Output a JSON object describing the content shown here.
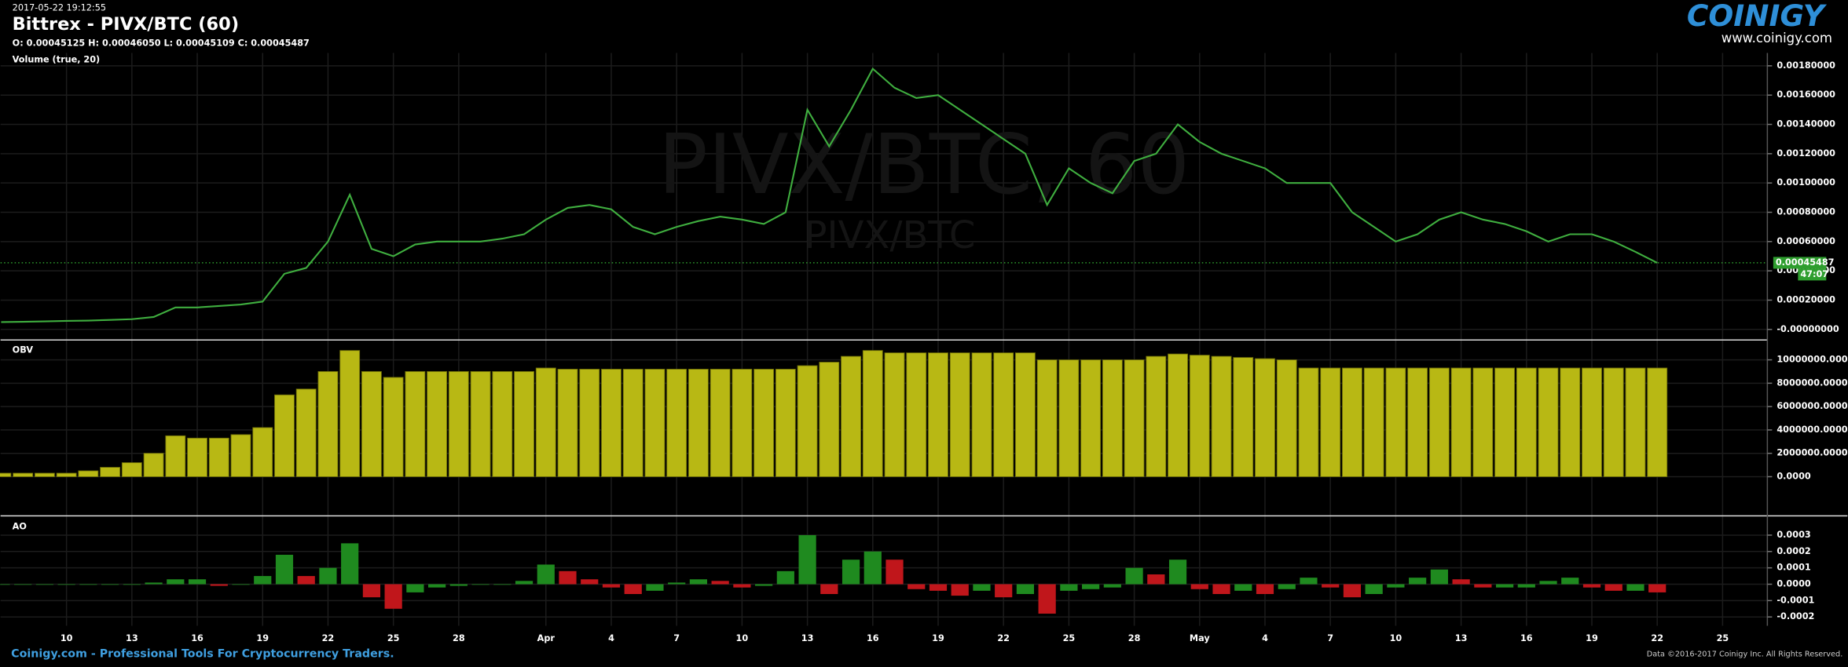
{
  "header": {
    "timestamp": "2017-05-22 19:12:55",
    "title": "Bittrex - PIVX/BTC (60)",
    "ohlc": "O: 0.00045125 H: 0.00046050 L: 0.00045109 C: 0.00045487",
    "volume_label": "Volume (true, 20)"
  },
  "logo": {
    "name": "COINIGY",
    "url": "www.coinigy.com"
  },
  "watermark": {
    "main": "PIVX/BTC, 60",
    "sub": "PIVX/BTC"
  },
  "footer": {
    "left": "Coinigy.com - Professional Tools For Cryptocurrency Traders.",
    "right": "Data ©2016-2017 Coinigy Inc. All Rights Reserved."
  },
  "chart_data": [
    {
      "type": "line",
      "color": "#3fae3f",
      "last_price": 0.00045487,
      "countdown": "47:07",
      "last_color": "#2e9e2e",
      "ylim": [
        -6.4e-05,
        0.001888
      ],
      "yticks": [
        {
          "value": 0.0018,
          "label": "0.00180000"
        },
        {
          "value": 0.0016,
          "label": "0.00160000"
        },
        {
          "value": 0.0014,
          "label": "0.00140000"
        },
        {
          "value": 0.0012,
          "label": "0.00120000"
        },
        {
          "value": 0.001,
          "label": "0.00100000"
        },
        {
          "value": 0.0008,
          "label": "0.00080000"
        },
        {
          "value": 0.0006,
          "label": "0.00060000"
        },
        {
          "value": 0.0004,
          "label": "0.00040000"
        },
        {
          "value": 0.0002,
          "label": "0.00020000"
        },
        {
          "value": 0,
          "label": "-0.00000000"
        }
      ],
      "values": [
        5e-05,
        5.2e-05,
        5.5e-05,
        5.8e-05,
        6e-05,
        6.5e-05,
        7e-05,
        8.5e-05,
        0.00015,
        0.00015,
        0.00016,
        0.00017,
        0.00019,
        0.00038,
        0.00042,
        0.0006,
        0.00092,
        0.00055,
        0.0005,
        0.00058,
        0.0006,
        0.0006,
        0.0006,
        0.00062,
        0.00065,
        0.00075,
        0.00083,
        0.00085,
        0.00082,
        0.0007,
        0.00065,
        0.0007,
        0.00074,
        0.00077,
        0.00075,
        0.00072,
        0.0008,
        0.0015,
        0.00125,
        0.0015,
        0.00178,
        0.00165,
        0.00158,
        0.0016,
        0.0015,
        0.0014,
        0.0013,
        0.0012,
        0.00085,
        0.0011,
        0.001,
        0.00093,
        0.00115,
        0.0012,
        0.0014,
        0.00128,
        0.0012,
        0.00115,
        0.0011,
        0.001,
        0.001,
        0.001,
        0.0008,
        0.0007,
        0.0006,
        0.00065,
        0.00075,
        0.0008,
        0.00075,
        0.00072,
        0.00067,
        0.0006,
        0.00065,
        0.00065,
        0.0006,
        0.00053,
        0.000455,
        null,
        null,
        null
      ]
    },
    {
      "type": "bar",
      "title": "OBV",
      "color": "#b8b814",
      "ylim": [
        -3200000,
        11500000
      ],
      "yticks": [
        {
          "value": 10000000,
          "label": "10000000.0000"
        },
        {
          "value": 8000000,
          "label": "8000000.0000"
        },
        {
          "value": 6000000,
          "label": "6000000.0000"
        },
        {
          "value": 4000000,
          "label": "4000000.0000"
        },
        {
          "value": 2000000,
          "label": "2000000.0000"
        },
        {
          "value": 0,
          "label": "0.0000"
        }
      ],
      "values": [
        300000,
        300000,
        300000,
        300000,
        500000,
        800000,
        1200000,
        2000000,
        3500000,
        3300000,
        3300000,
        3600000,
        4200000,
        7000000,
        7500000,
        9000000,
        10800000,
        9000000,
        8500000,
        9000000,
        9000000,
        9000000,
        9000000,
        9000000,
        9000000,
        9300000,
        9200000,
        9200000,
        9200000,
        9200000,
        9200000,
        9200000,
        9200000,
        9200000,
        9200000,
        9200000,
        9200000,
        9500000,
        9800000,
        10300000,
        10800000,
        10600000,
        10600000,
        10600000,
        10600000,
        10600000,
        10600000,
        10600000,
        10000000,
        10000000,
        10000000,
        10000000,
        10000000,
        10300000,
        10500000,
        10400000,
        10300000,
        10200000,
        10100000,
        10000000,
        9300000,
        9300000,
        9300000,
        9300000,
        9300000,
        9300000,
        9300000,
        9300000,
        9300000,
        9300000,
        9300000,
        9300000,
        9300000,
        9300000,
        9300000,
        9300000,
        9300000,
        null,
        null,
        null
      ]
    },
    {
      "type": "ao",
      "title": "AO",
      "up_color": "#1f8a1f",
      "down_color": "#c0161b",
      "ylim": [
        -0.00024,
        0.0004
      ],
      "yticks": [
        0.0003,
        0.0002,
        0.0001,
        {
          "value": 0,
          "label": "0.0000"
        },
        -0.0001,
        -0.0002
      ],
      "categories": [
        null,
        null,
        null,
        "10",
        null,
        null,
        "13",
        null,
        null,
        "16",
        null,
        null,
        "19",
        null,
        null,
        "22",
        null,
        null,
        "25",
        null,
        null,
        "28",
        null,
        null,
        null,
        "Apr",
        null,
        null,
        "4",
        null,
        null,
        "7",
        null,
        null,
        "10",
        null,
        null,
        "13",
        null,
        null,
        "16",
        null,
        null,
        "19",
        null,
        null,
        "22",
        null,
        null,
        "25",
        null,
        null,
        "28",
        null,
        null,
        "May",
        null,
        null,
        "4",
        null,
        null,
        "7",
        null,
        null,
        "10",
        null,
        null,
        "13",
        null,
        null,
        "16",
        null,
        null,
        "19",
        null,
        null,
        "22",
        null,
        null,
        "25"
      ],
      "values": [
        0,
        0,
        0,
        0,
        0,
        0,
        0,
        1e-05,
        3e-05,
        3e-05,
        -1e-05,
        0,
        5e-05,
        0.00018,
        5e-05,
        0.0001,
        0.00025,
        -8e-05,
        -0.00015,
        -5e-05,
        -2e-05,
        -1e-05,
        0,
        0,
        2e-05,
        0.00012,
        8e-05,
        3e-05,
        -2e-05,
        -6e-05,
        -4e-05,
        1e-05,
        3e-05,
        2e-05,
        -2e-05,
        -1e-05,
        8e-05,
        0.0003,
        -6e-05,
        0.00015,
        0.0002,
        0.00015,
        -3e-05,
        -4e-05,
        -7e-05,
        -4e-05,
        -8e-05,
        -6e-05,
        -0.00018,
        -4e-05,
        -3e-05,
        -2e-05,
        0.0001,
        6e-05,
        0.00015,
        -3e-05,
        -6e-05,
        -4e-05,
        -6e-05,
        -3e-05,
        4e-05,
        -2e-05,
        -8e-05,
        -6e-05,
        -2e-05,
        4e-05,
        9e-05,
        3e-05,
        -2e-05,
        -2e-05,
        -2e-05,
        2e-05,
        4e-05,
        -2e-05,
        -4e-05,
        -4e-05,
        -5e-05,
        null,
        null,
        null
      ]
    }
  ]
}
